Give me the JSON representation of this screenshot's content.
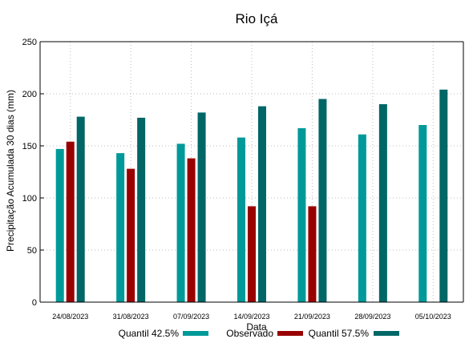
{
  "chart_data": {
    "type": "bar",
    "title": "Rio Içá",
    "xlabel": "Data",
    "ylabel": "Precipitação Acumulada 30 dias (mm)",
    "ylim": [
      0,
      250
    ],
    "yticks": [
      "0",
      "50",
      "100",
      "150",
      "200",
      "250"
    ],
    "grid": "y-dashed",
    "categories": [
      "24/08/2023",
      "31/08/2023",
      "07/09/2023",
      "14/09/2023",
      "21/09/2023",
      "28/09/2023",
      "05/10/2023"
    ],
    "series": [
      {
        "name": "Quantil 42.5%",
        "color": "#009999",
        "values": [
          147,
          143,
          152,
          158,
          167,
          161,
          170
        ]
      },
      {
        "name": "Observado",
        "color": "#990000",
        "values": [
          154,
          128,
          138,
          92,
          92,
          null,
          null
        ]
      },
      {
        "name": "Quantil 57.5%",
        "color": "#006666",
        "values": [
          178,
          177,
          182,
          188,
          195,
          190,
          204
        ]
      }
    ],
    "legend_position": "bottom"
  }
}
